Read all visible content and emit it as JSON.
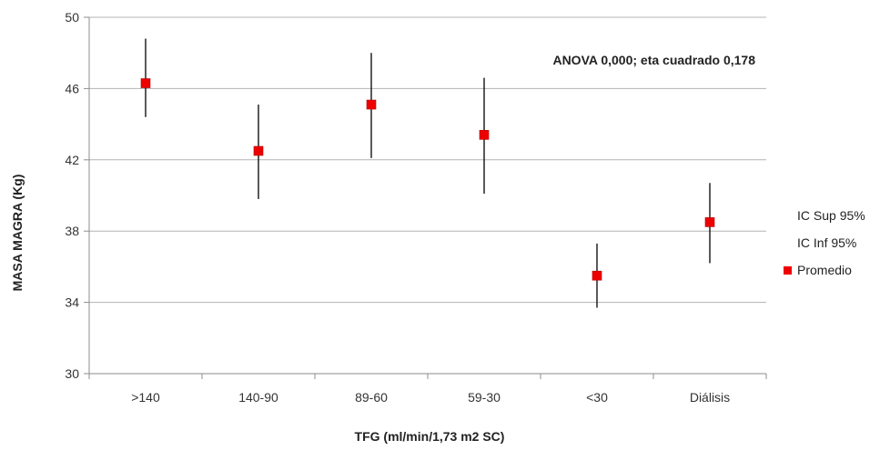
{
  "chart_data": {
    "type": "scatter",
    "categories": [
      ">140",
      "140-90",
      "89-60",
      "59-30",
      "<30",
      "Diálisis"
    ],
    "series": [
      {
        "name": "IC Sup 95%",
        "values": [
          48.8,
          45.1,
          48.0,
          46.6,
          37.3,
          40.7
        ]
      },
      {
        "name": "IC Inf 95%",
        "values": [
          44.4,
          39.8,
          42.1,
          40.1,
          33.7,
          36.2
        ]
      },
      {
        "name": "Promedio",
        "values": [
          46.3,
          42.5,
          45.1,
          43.4,
          35.5,
          38.5
        ],
        "color": "#ee0000"
      }
    ],
    "ylim": [
      30,
      50
    ],
    "yticks": [
      "30",
      "34",
      "38",
      "42",
      "46",
      "50"
    ],
    "xlabel": "TFG (ml/min/1,73 m2 SC)",
    "ylabel": "MASA MAGRA (Kg)",
    "annotation": "ANOVA 0,000; eta cuadrado 0,178",
    "legend": [
      "IC Sup 95%",
      "IC Inf 95%",
      "Promedio"
    ],
    "legend_position": "right",
    "grid": true,
    "colors": {
      "marker": "#ee0000",
      "errorbar": "#000000",
      "grid": "#b3b3b3",
      "axis": "#8c8c8c"
    }
  }
}
